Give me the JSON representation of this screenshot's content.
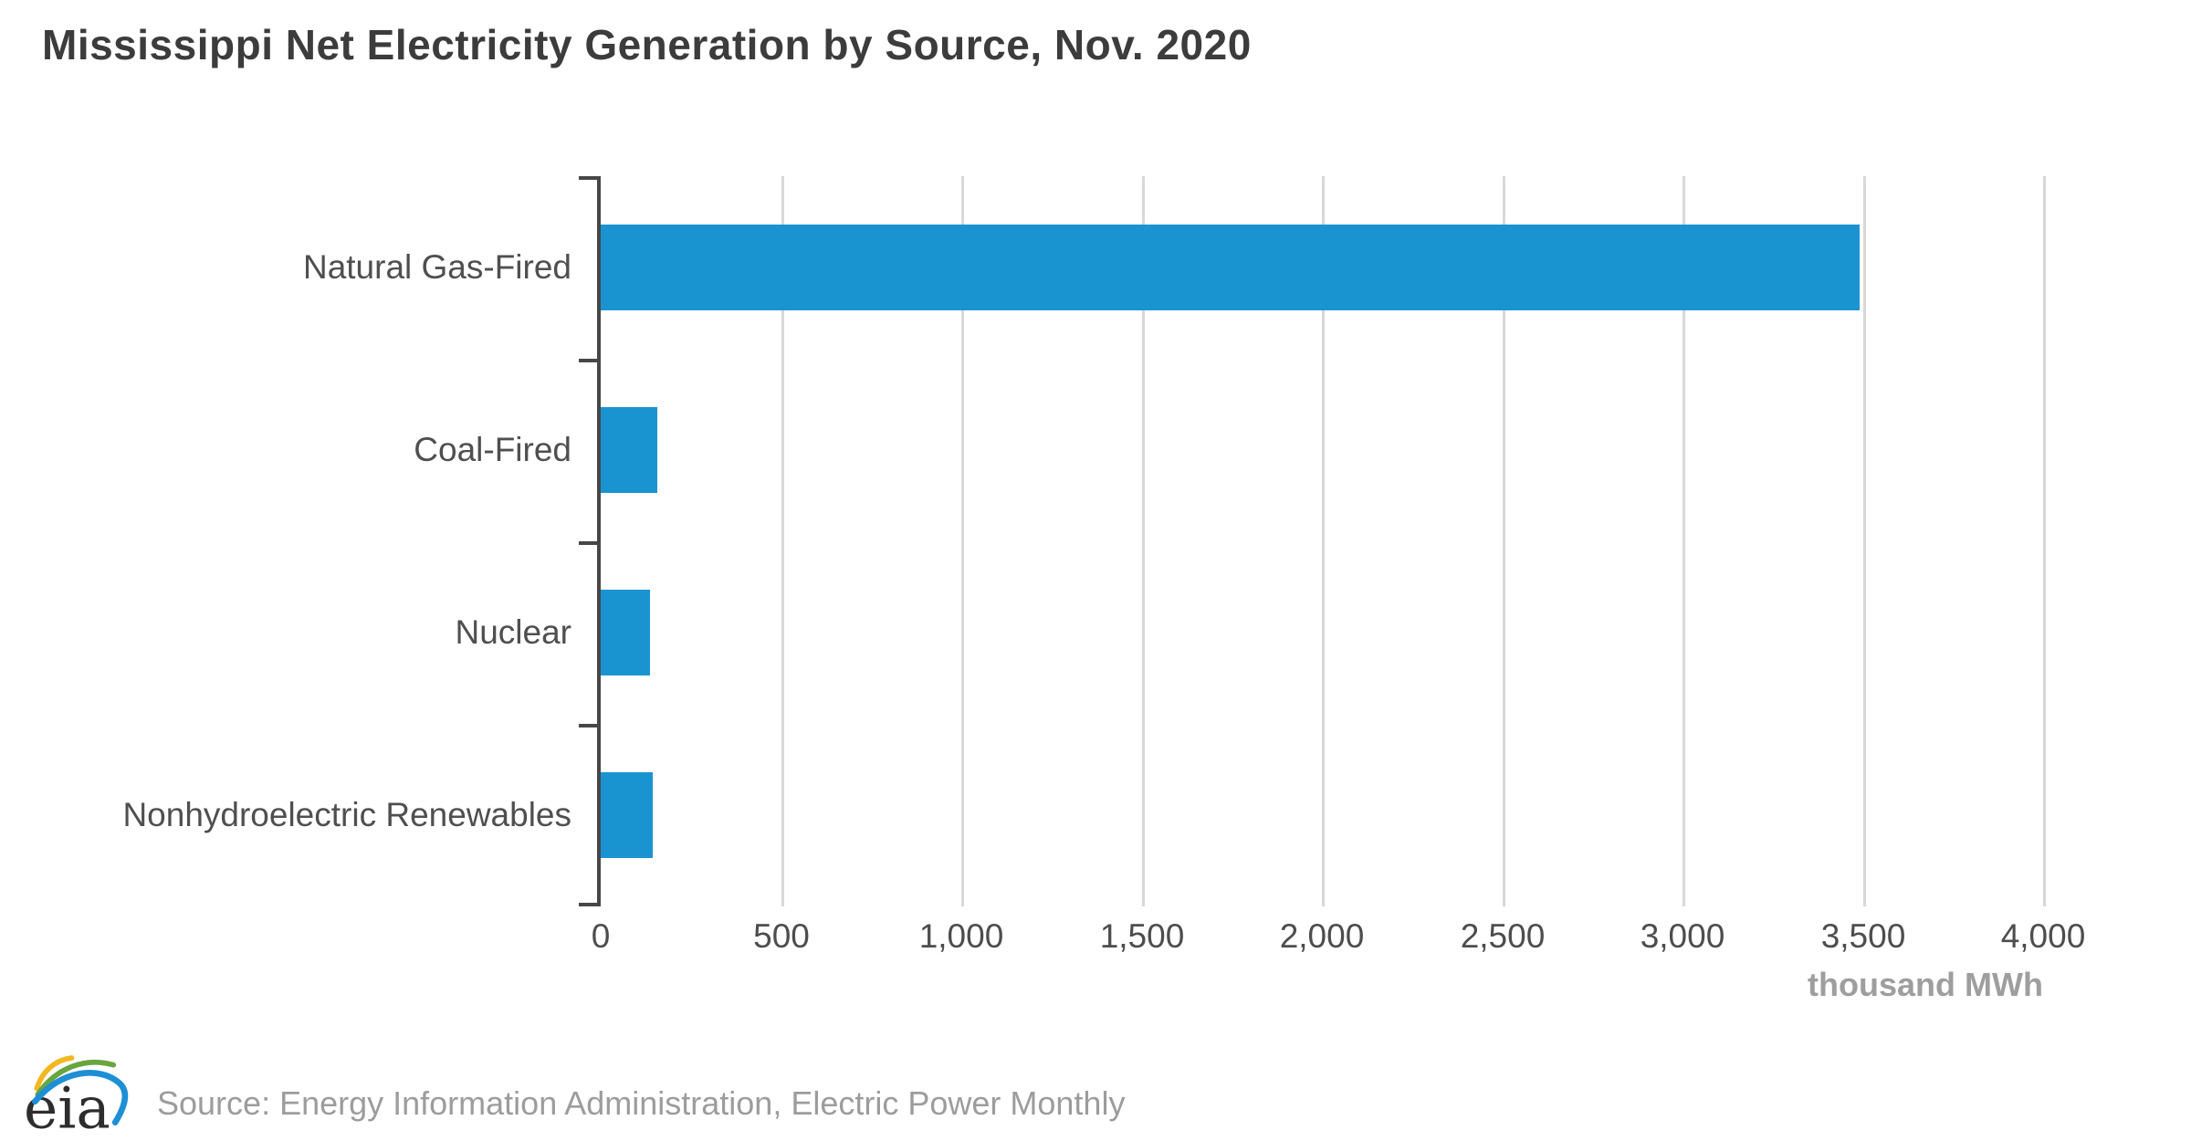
{
  "title": "Mississippi Net Electricity Generation by Source, Nov. 2020",
  "chart_data": {
    "type": "bar",
    "orientation": "horizontal",
    "title": "Mississippi Net Electricity Generation by Source, Nov. 2020",
    "categories": [
      "Natural Gas-Fired",
      "Coal-Fired",
      "Nuclear",
      "Nonhydroelectric Renewables"
    ],
    "values": [
      3490,
      157,
      136,
      144
    ],
    "xlabel": "thousand MWh",
    "ylabel": "",
    "xlim": [
      0,
      4000
    ],
    "x_ticks": [
      0,
      500,
      1000,
      1500,
      2000,
      2500,
      3000,
      3500,
      4000
    ],
    "x_tick_labels": [
      "0",
      "500",
      "1,000",
      "1,500",
      "2,000",
      "2,500",
      "3,000",
      "3,500",
      "4,000"
    ],
    "grid": true,
    "legend": false,
    "bar_color": "#1a94d1"
  },
  "footer": {
    "logo_text": "eia",
    "source": "Source: Energy Information Administration, Electric Power Monthly"
  },
  "colors": {
    "bar": "#1a94d1",
    "axis": "#474747",
    "grid": "#d8d8d8",
    "title_text": "#3c3c3c",
    "label_text": "#4f4f4f",
    "muted_text": "#9e9e9e",
    "logo_yellow": "#f3b820",
    "logo_green": "#68a53f",
    "logo_blue": "#1e8fd5"
  }
}
